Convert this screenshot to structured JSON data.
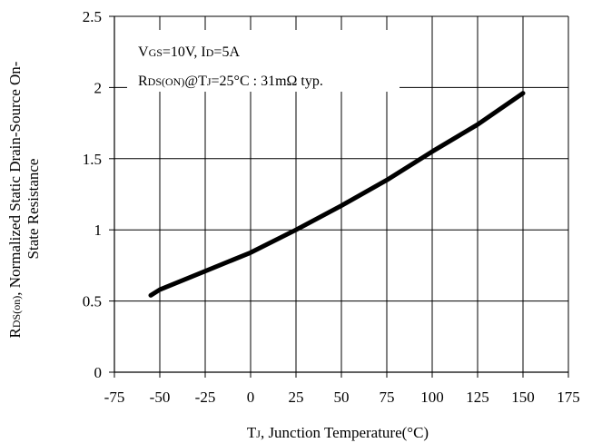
{
  "chart_data": {
    "type": "line",
    "title": "",
    "xlabel": "TJ, Junction Temperature(°C)",
    "ylabel": "RDS(on), Normalized Static Drain-Source On-State Resistance",
    "xlim": [
      -75,
      175
    ],
    "ylim": [
      0,
      2.5
    ],
    "x_ticks": [
      "-75",
      "-50",
      "-25",
      "0",
      "25",
      "50",
      "75",
      "100",
      "125",
      "150",
      "175"
    ],
    "y_ticks": [
      "0",
      "0.5",
      "1",
      "1.5",
      "2",
      "2.5"
    ],
    "grid": true,
    "series": [
      {
        "x": [
          -55,
          -50,
          -25,
          0,
          25,
          50,
          75,
          100,
          125,
          150
        ],
        "y": [
          0.54,
          0.58,
          0.71,
          0.84,
          1.0,
          1.17,
          1.35,
          1.55,
          1.74,
          1.96
        ]
      }
    ],
    "annotations": {
      "line1_a": "V",
      "line1_b": "GS",
      "line1_c": "=10V, I",
      "line1_d": "D",
      "line1_e": "=5A",
      "line2_a": "R",
      "line2_b": "DS(ON)",
      "line2_c": "@T",
      "line2_d": "J",
      "line2_e": "=25°C : 31mΩ  typ."
    },
    "axis_text": {
      "x_a": "T",
      "x_b": "J",
      "x_c": ", Junction Temperature(°C)",
      "y1_a": "R",
      "y1_b": "DS(on)",
      "y1_c": ", Normalized Static Drain-Source On-",
      "y2": "State Resistance"
    }
  }
}
